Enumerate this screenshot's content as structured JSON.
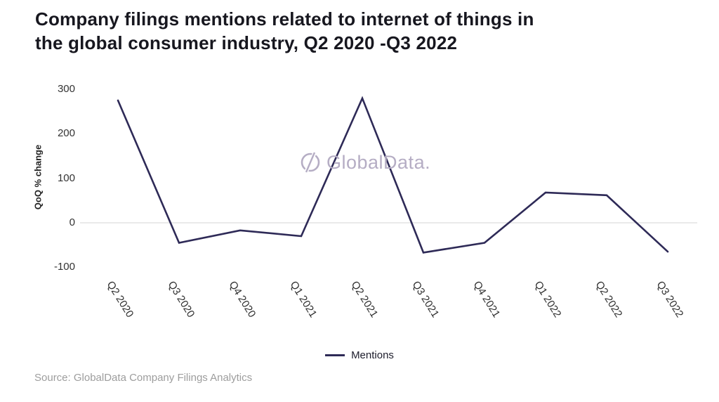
{
  "title": {
    "line1": "Company filings mentions related to internet of things in",
    "line2": "the global consumer industry, Q2 2020 -Q3 2022"
  },
  "watermark": {
    "text": "GlobalData.",
    "icon": "globaldata-logo-icon",
    "color": "#b5adc4"
  },
  "legend": {
    "label": "Mentions"
  },
  "source": {
    "text": "Source: GlobalData Company Filings Analytics"
  },
  "colors": {
    "line": "#2e2a57",
    "title_text": "#17171f",
    "axis_text": "#333333",
    "zero_gridline": "#e3e3e3",
    "watermark": "#b5adc4",
    "source_text": "#9d9d9d"
  },
  "chart_data": {
    "type": "line",
    "title": "Company filings mentions related to internet of things in the global consumer industry, Q2 2020 -Q3 2022",
    "categories": [
      "Q2 2020",
      "Q3 2020",
      "Q4 2020",
      "Q1 2021",
      "Q2 2021",
      "Q3 2021",
      "Q4 2021",
      "Q1 2022",
      "Q2 2022",
      "Q3 2022"
    ],
    "series": [
      {
        "name": "Mentions",
        "values": [
          275,
          -45,
          -17,
          -30,
          280,
          -67,
          -45,
          68,
          62,
          -65
        ]
      }
    ],
    "xlabel": "",
    "ylabel": "QoQ % change",
    "yticks": [
      300,
      200,
      100,
      0,
      -100
    ],
    "ylim": [
      -130,
      320
    ],
    "grid": "zero-line-only",
    "legend_position": "bottom"
  }
}
